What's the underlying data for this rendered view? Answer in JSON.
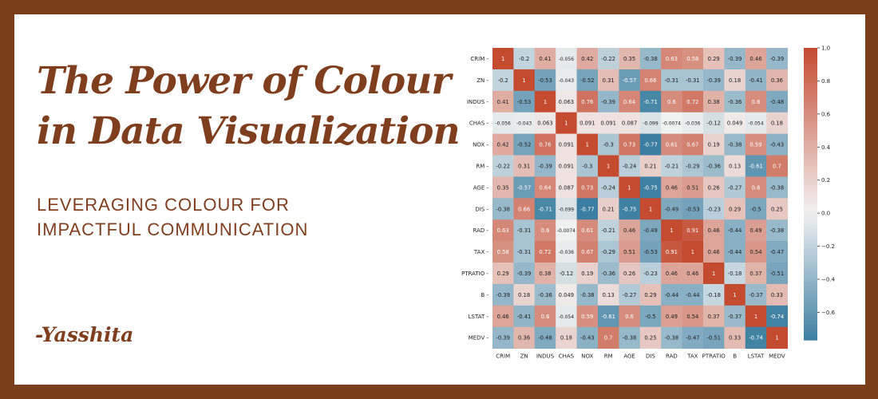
{
  "title": "The Power of Colour in Data Visualization",
  "subtitle": "LEVERAGING COLOUR FOR IMPACTFUL COMMUNICATION",
  "author": "-Yasshita",
  "colors": {
    "border": "#7a3e1c",
    "text": "#7f3f1e",
    "low": "#3b7ea1",
    "mid": "#f2f2f2",
    "high": "#c44a30"
  },
  "chart_data": {
    "type": "heatmap",
    "labels": [
      "CRIM",
      "ZN",
      "INDUS",
      "CHAS",
      "NOX",
      "RM",
      "AGE",
      "DIS",
      "RAD",
      "TAX",
      "PTRATIO",
      "B",
      "LSTAT",
      "MEDV"
    ],
    "values": [
      [
        1,
        -0.2,
        0.41,
        -0.056,
        0.42,
        -0.22,
        0.35,
        -0.38,
        0.63,
        0.58,
        0.29,
        -0.39,
        0.46,
        -0.39
      ],
      [
        -0.2,
        1,
        -0.53,
        -0.043,
        -0.52,
        0.31,
        -0.57,
        0.66,
        -0.31,
        -0.31,
        -0.39,
        0.18,
        -0.41,
        0.36
      ],
      [
        0.41,
        -0.53,
        1,
        0.063,
        0.76,
        -0.39,
        0.64,
        -0.71,
        0.6,
        0.72,
        0.38,
        -0.36,
        0.6,
        -0.48
      ],
      [
        -0.056,
        -0.043,
        0.063,
        1,
        0.091,
        0.091,
        0.087,
        -0.099,
        -0.0074,
        -0.036,
        -0.12,
        0.049,
        -0.054,
        0.18
      ],
      [
        0.42,
        -0.52,
        0.76,
        0.091,
        1,
        -0.3,
        0.73,
        -0.77,
        0.61,
        0.67,
        0.19,
        -0.38,
        0.59,
        -0.43
      ],
      [
        -0.22,
        0.31,
        -0.39,
        0.091,
        -0.3,
        1,
        -0.24,
        0.21,
        -0.21,
        -0.29,
        -0.36,
        0.13,
        -0.61,
        0.7
      ],
      [
        0.35,
        -0.57,
        0.64,
        0.087,
        0.73,
        -0.24,
        1,
        -0.75,
        0.46,
        0.51,
        0.26,
        -0.27,
        0.6,
        -0.38
      ],
      [
        -0.38,
        0.66,
        -0.71,
        -0.099,
        -0.77,
        0.21,
        -0.75,
        1,
        -0.49,
        -0.53,
        -0.23,
        0.29,
        -0.5,
        0.25
      ],
      [
        0.63,
        -0.31,
        0.6,
        -0.0074,
        0.61,
        -0.21,
        0.46,
        -0.49,
        1,
        0.91,
        0.46,
        -0.44,
        0.49,
        -0.38
      ],
      [
        0.58,
        -0.31,
        0.72,
        -0.036,
        0.67,
        -0.29,
        0.51,
        -0.53,
        0.91,
        1,
        0.46,
        -0.44,
        0.54,
        -0.47
      ],
      [
        0.29,
        -0.39,
        0.38,
        -0.12,
        0.19,
        -0.36,
        0.26,
        -0.23,
        0.46,
        0.46,
        1,
        -0.18,
        0.37,
        -0.51
      ],
      [
        -0.39,
        0.18,
        -0.36,
        0.049,
        -0.38,
        0.13,
        -0.27,
        0.29,
        -0.44,
        -0.44,
        -0.18,
        1,
        -0.37,
        0.33
      ],
      [
        0.46,
        -0.41,
        0.6,
        -0.054,
        0.59,
        -0.61,
        0.6,
        -0.5,
        0.49,
        0.54,
        0.37,
        -0.37,
        1,
        -0.74
      ],
      [
        -0.39,
        0.36,
        -0.48,
        0.18,
        -0.43,
        0.7,
        -0.38,
        0.25,
        -0.38,
        -0.47,
        -0.51,
        0.33,
        -0.74,
        1
      ]
    ],
    "colorbar": {
      "range": [
        -0.77,
        1.0
      ],
      "ticks": [
        1.0,
        0.8,
        0.6,
        0.4,
        0.2,
        0.0,
        -0.2,
        -0.4,
        -0.6
      ],
      "tick_labels": [
        "1.0",
        "0.8",
        "0.6",
        "0.4",
        "0.2",
        "0.0",
        "−0.2",
        "−0.4",
        "−0.6"
      ]
    }
  }
}
